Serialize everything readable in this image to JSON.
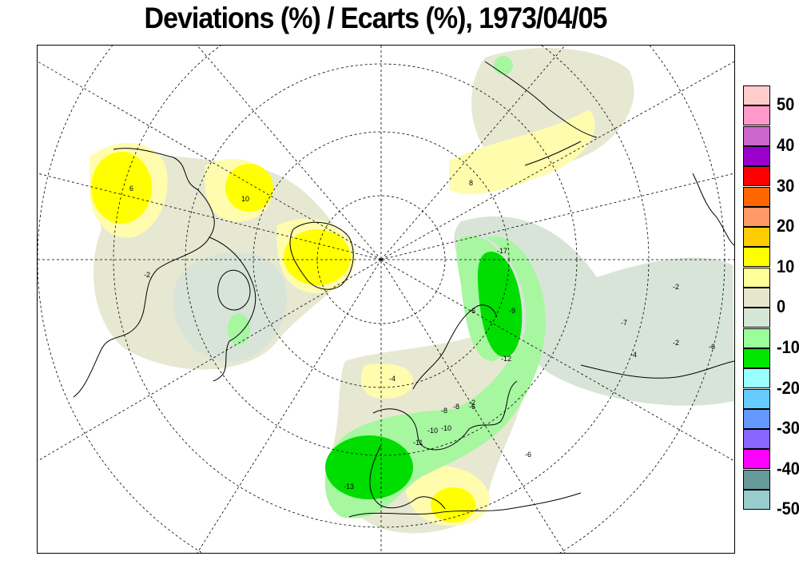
{
  "title": "Deviations (%) / Ecarts (%), 1973/04/05",
  "legend": {
    "levels": [
      {
        "color": "#ffcccc"
      },
      {
        "color": "#ff99cc"
      },
      {
        "color": "#cc66cc"
      },
      {
        "color": "#9900cc"
      },
      {
        "color": "#ff0000"
      },
      {
        "color": "#ff6600"
      },
      {
        "color": "#ff9966"
      },
      {
        "color": "#ffcc00"
      },
      {
        "color": "#ffff00"
      },
      {
        "color": "#ffff99"
      },
      {
        "color": "#e6e6cc"
      },
      {
        "color": "#d6e6d6"
      },
      {
        "color": "#99ff99"
      },
      {
        "color": "#00e600"
      },
      {
        "color": "#99ffff"
      },
      {
        "color": "#66ccff"
      },
      {
        "color": "#6699ff"
      },
      {
        "color": "#8866ff"
      },
      {
        "color": "#ff00ff"
      },
      {
        "color": "#669999"
      },
      {
        "color": "#99cccc"
      }
    ],
    "labels": [
      "50",
      "40",
      "30",
      "20",
      "10",
      "0",
      "-10",
      "-20",
      "-30",
      "-40",
      "-50"
    ]
  },
  "contour_labels": [
    "-13",
    "-11",
    "-10",
    "-8",
    "-6",
    "-2",
    "-12",
    "-17",
    "-4",
    "-2",
    "-6",
    "-9",
    "-2",
    "-4",
    "-6",
    "-8",
    "-7",
    "-6",
    "-10",
    "10",
    "6",
    "8",
    "-2"
  ],
  "colors": {
    "band_0_to_10": "#fffcae",
    "band_10_to_20": "#ffff00",
    "band_minus10_to_0": "#e7e8d2",
    "band_minus20_to_minus10": "#d8e4d8",
    "band_light_green": "#a6f7a0",
    "band_green": "#00dd00"
  }
}
